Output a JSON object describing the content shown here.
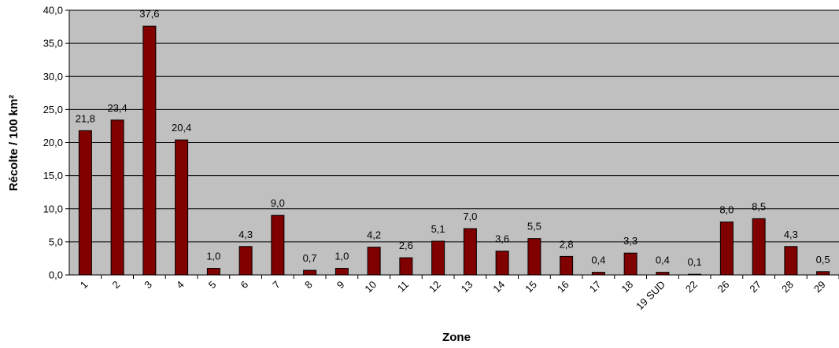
{
  "chart_data": {
    "type": "bar",
    "xlabel": "Zone",
    "ylabel": "Récolte / 100 km²",
    "ylim": [
      0,
      40
    ],
    "ytick_labels": [
      "0,0",
      "5,0",
      "10,0",
      "15,0",
      "20,0",
      "25,0",
      "30,0",
      "35,0",
      "40,0"
    ],
    "grid": true,
    "categories": [
      "1",
      "2",
      "3",
      "4",
      "5",
      "6",
      "7",
      "8",
      "9",
      "10",
      "11",
      "12",
      "13",
      "14",
      "15",
      "16",
      "17",
      "18",
      "19 SUD",
      "22",
      "26",
      "27",
      "28",
      "29"
    ],
    "values": [
      21.8,
      23.4,
      37.6,
      20.4,
      1.0,
      4.3,
      9.0,
      0.7,
      1.0,
      4.2,
      2.6,
      5.1,
      7.0,
      3.6,
      5.5,
      2.8,
      0.4,
      3.3,
      0.4,
      0.1,
      8.0,
      8.5,
      4.3,
      0.5
    ],
    "value_labels": [
      "21,8",
      "23,4",
      "37,6",
      "20,4",
      "1,0",
      "4,3",
      "9,0",
      "0,7",
      "1,0",
      "4,2",
      "2,6",
      "5,1",
      "7,0",
      "3,6",
      "5,5",
      "2,8",
      "0,4",
      "3,3",
      "0,4",
      "0,1",
      "8,0",
      "8,5",
      "4,3",
      "0,5"
    ],
    "colors": {
      "bar": "#800000",
      "bar_edge": "#000000",
      "plot_background": "#c0c0c0",
      "gridline": "#000000"
    }
  }
}
